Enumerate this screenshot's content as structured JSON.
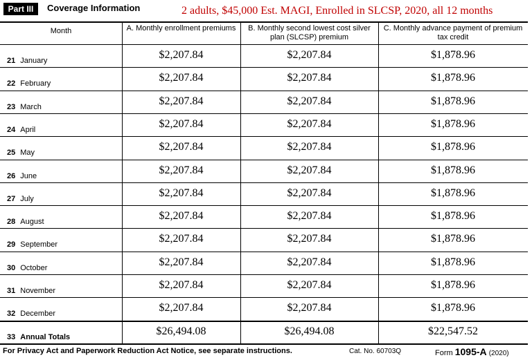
{
  "header": {
    "part": "Part III",
    "title": "Coverage Information",
    "note": "2 adults, $45,000 Est. MAGI, Enrolled in SLCSP, 2020, all 12 months"
  },
  "table": {
    "columns": [
      "Month",
      "A. Monthly enrollment premiums",
      "B. Monthly second lowest cost silver plan (SLCSP) premium",
      "C. Monthly advance payment of premium tax credit"
    ],
    "rows": [
      {
        "line": "21",
        "month": "January",
        "a": "$2,207.84",
        "b": "$2,207.84",
        "c": "$1,878.96"
      },
      {
        "line": "22",
        "month": "February",
        "a": "$2,207.84",
        "b": "$2,207.84",
        "c": "$1,878.96"
      },
      {
        "line": "23",
        "month": "March",
        "a": "$2,207.84",
        "b": "$2,207.84",
        "c": "$1,878.96"
      },
      {
        "line": "24",
        "month": "April",
        "a": "$2,207.84",
        "b": "$2,207.84",
        "c": "$1,878.96"
      },
      {
        "line": "25",
        "month": "May",
        "a": "$2,207.84",
        "b": "$2,207.84",
        "c": "$1,878.96"
      },
      {
        "line": "26",
        "month": "June",
        "a": "$2,207.84",
        "b": "$2,207.84",
        "c": "$1,878.96"
      },
      {
        "line": "27",
        "month": "July",
        "a": "$2,207.84",
        "b": "$2,207.84",
        "c": "$1,878.96"
      },
      {
        "line": "28",
        "month": "August",
        "a": "$2,207.84",
        "b": "$2,207.84",
        "c": "$1,878.96"
      },
      {
        "line": "29",
        "month": "September",
        "a": "$2,207.84",
        "b": "$2,207.84",
        "c": "$1,878.96"
      },
      {
        "line": "30",
        "month": "October",
        "a": "$2,207.84",
        "b": "$2,207.84",
        "c": "$1,878.96"
      },
      {
        "line": "31",
        "month": "November",
        "a": "$2,207.84",
        "b": "$2,207.84",
        "c": "$1,878.96"
      },
      {
        "line": "32",
        "month": "December",
        "a": "$2,207.84",
        "b": "$2,207.84",
        "c": "$1,878.96"
      }
    ],
    "totals": {
      "line": "33",
      "label": "Annual Totals",
      "a": "$26,494.08",
      "b": "$26,494.08",
      "c": "$22,547.52"
    }
  },
  "footer": {
    "notice": "For Privacy Act and Paperwork Reduction Act Notice, see separate instructions.",
    "catalog": "Cat. No. 60703Q",
    "form_word": "Form",
    "form_number": "1095-A",
    "form_year": "(2020)"
  }
}
